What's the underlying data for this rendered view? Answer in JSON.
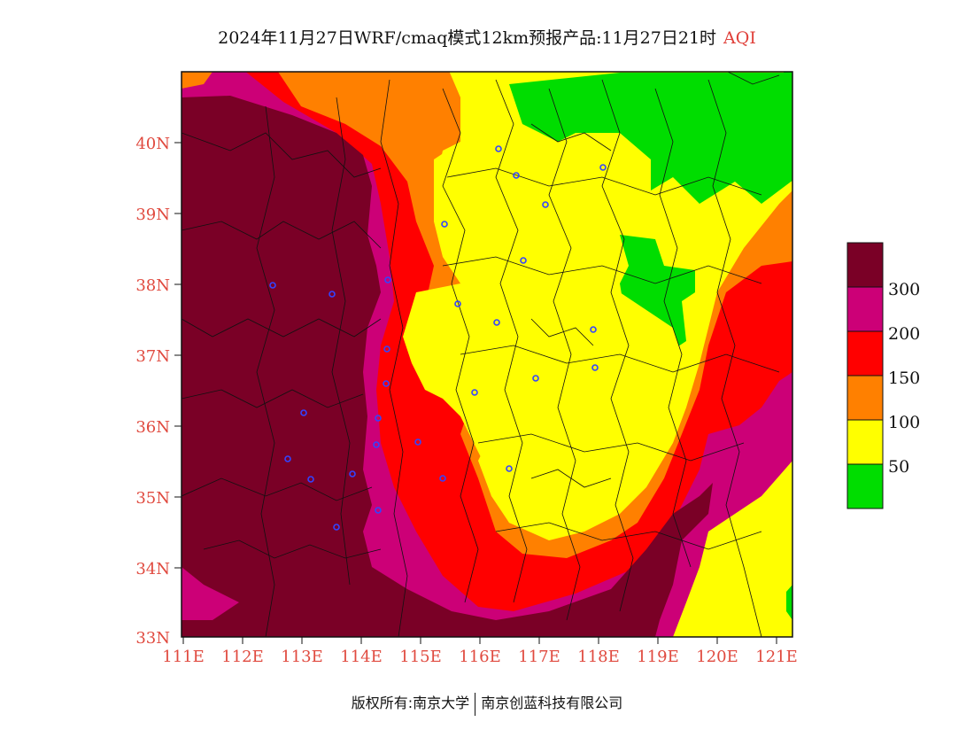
{
  "title": {
    "main": "2024年11月27日WRF/cmaq模式12km预报产品:11月27日21时",
    "variable": "AQI"
  },
  "axes": {
    "lat_labels": [
      "40N",
      "39N",
      "38N",
      "37N",
      "36N",
      "35N",
      "34N",
      "33N"
    ],
    "lon_labels": [
      "111E",
      "112E",
      "113E",
      "114E",
      "115E",
      "116E",
      "117E",
      "118E",
      "119E",
      "120E",
      "121E"
    ]
  },
  "legend": {
    "labels": [
      "300",
      "200",
      "150",
      "100",
      "50"
    ],
    "colors": [
      "#7a0026",
      "#cc0077",
      "#ff0000",
      "#ff8000",
      "#ffff00",
      "#00dd00"
    ]
  },
  "footer": {
    "left": "版权所有:南京大学",
    "right": "南京创蓝科技有限公司"
  }
}
